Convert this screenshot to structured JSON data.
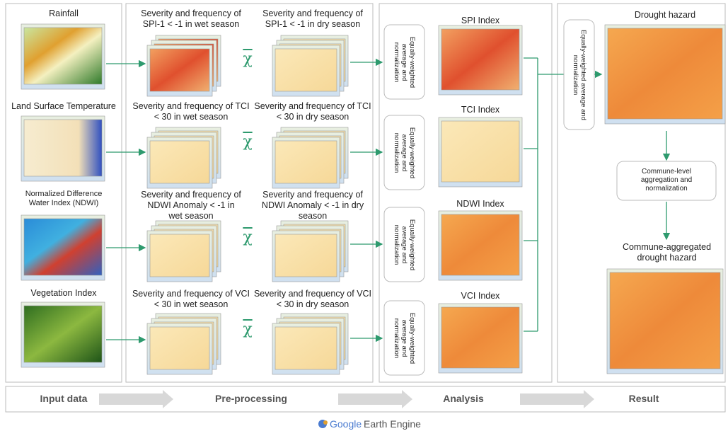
{
  "input": {
    "heading": "Input data",
    "items": [
      "Rainfall",
      "Land Surface Temperature",
      "Normalized Difference Water Index (NDWI)",
      "Vegetation Index"
    ]
  },
  "preprocessing": {
    "heading": "Pre-processing",
    "wet": [
      "Severity and frequency of SPI-1 < -1 in wet season",
      "Severity and frequency of TCI < 30 in wet season",
      "Severity and frequency of NDWI Anomaly < -1 in wet season",
      "Severity and frequency of VCI < 30 in wet season"
    ],
    "dry": [
      "Severity and frequency of SPI-1 < -1 in dry season",
      "Severity and frequency of TCI < 30 in dry season",
      "Severity and frequency of NDWI Anomaly < -1 in dry season",
      "Severity and frequency of VCI < 30 in dry season"
    ],
    "operator": [
      "χ",
      "χ",
      "χ",
      "χ"
    ]
  },
  "analysis": {
    "heading": "Analysis",
    "steps": [
      "Equally-weighted average and normalization",
      "Equally-weighted average and normalization",
      "Equally-weighted average and normalization",
      "Equally-weighted average and normalization"
    ],
    "indices": [
      "SPI Index",
      "TCI Index",
      "NDWI Index",
      "VCI Index"
    ]
  },
  "result": {
    "heading": "Result",
    "hazard": "Drought hazard",
    "step": "Equally-weighted average and normalization",
    "commune_step": "Commune-level aggregation and normalization",
    "commune_hazard": "Commune-aggregated drought hazard"
  },
  "footer": {
    "brand_google": "Google",
    "brand_product": "Earth Engine"
  }
}
